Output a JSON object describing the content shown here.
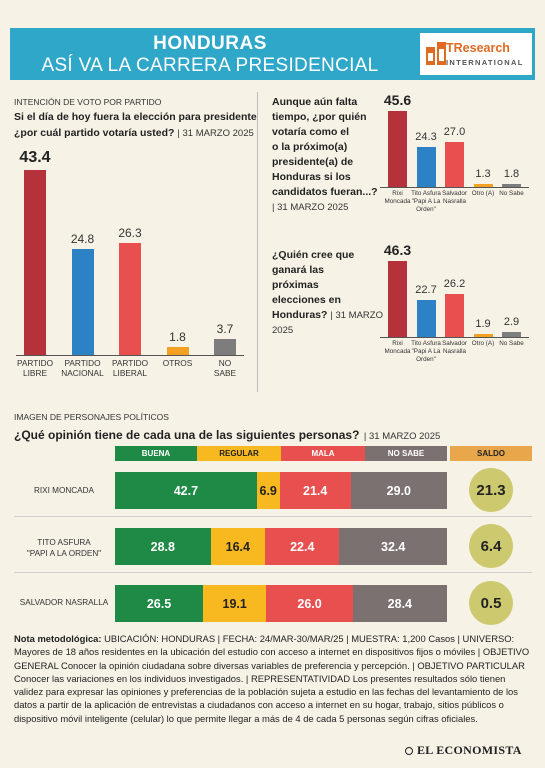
{
  "header": {
    "title": "HONDURAS",
    "subtitle": "ASÍ VA LA CARRERA PRESIDENCIAL",
    "logo_main": "TResearch",
    "logo_sub": "INTERNATIONAL",
    "bg_color": "#2fa7c9",
    "logo_color": "#e06a22"
  },
  "left_section": {
    "kicker": "INTENCIÓN DE VOTO POR PARTIDO",
    "question_line1": "Si el día de hoy fuera la elección para presidente",
    "question_line2": "¿por cuál partido votaría usted?",
    "date": "| 31 MARZO 2025"
  },
  "right_q1": {
    "line1": "Aunque aún falta",
    "line2": "tiempo, ¿por quién",
    "line3": "votaría como el",
    "line4": "o la próximo(a)",
    "line5": "presidente(a) de",
    "line6": "Honduras si los",
    "line7": "candidatos fueran...?",
    "date": "| 31 MARZO 2025"
  },
  "right_q2": {
    "line1": "¿Quién cree que",
    "line2": "ganará las próximas",
    "line3": "elecciones en",
    "line4": "Honduras?",
    "date_part1": "| 31 MARZO",
    "date_part2": "2025"
  },
  "image_section": {
    "kicker": "IMAGEN DE PERSONAJES POLÍTICOS",
    "question": "¿Qué opinión tiene de cada una de las siguientes personas?",
    "date": "| 31 MARZO 2025",
    "headers": [
      "BUENA",
      "REGULAR",
      "MALA",
      "NO SABE",
      "SALDO"
    ],
    "rows": [
      {
        "label1": "RIXI MONCADA",
        "label2": ""
      },
      {
        "label1": "TITO ASFURA",
        "label2": "\"PAPI A LA ORDEN\""
      },
      {
        "label1": "SALVADOR NASRALLA",
        "label2": ""
      }
    ]
  },
  "colors": {
    "red": "#b5323a",
    "blue": "#2c82c4",
    "light_red": "#e8504f",
    "orange": "#f2a122",
    "gray": "#7d7d7d",
    "green": "#1f8a45",
    "yellow": "#f8b820",
    "mala": "#e8504f",
    "nosabe": "#7b7170",
    "saldo_header": "#e9a74c",
    "saldo_circle": "#ccc96e"
  },
  "chart_data": [
    {
      "type": "bar",
      "title": "Si el día de hoy fuera la elección para presidente ¿por cuál partido votaría usted?",
      "categories": [
        "PARTIDO LIBRE",
        "PARTIDO NACIONAL",
        "PARTIDO LIBERAL",
        "OTROS",
        "NO SABE"
      ],
      "values": [
        43.4,
        24.8,
        26.3,
        1.8,
        3.7
      ],
      "value_labels": [
        "43.4",
        "24.8",
        "26.3",
        "1.8",
        "3.7"
      ],
      "colors": [
        "#b5323a",
        "#2c82c4",
        "#e8504f",
        "#f2a122",
        "#7d7d7d"
      ],
      "cat_lines": [
        [
          "PARTIDO",
          "LIBRE"
        ],
        [
          "PARTIDO",
          "NACIONAL"
        ],
        [
          "PARTIDO",
          "LIBERAL"
        ],
        [
          "OTROS",
          ""
        ],
        [
          "NO",
          "SABE"
        ]
      ]
    },
    {
      "type": "bar",
      "title": "Aunque aún falta tiempo, ¿por quién votaría como el o la próximo(a) presidente(a) de Honduras si los candidatos fueran...?",
      "categories": [
        "Rixi Moncada",
        "Tito Asfura \"Papi A La Orden\"",
        "Salvador Nasralla",
        "Otro (A)",
        "No Sabe"
      ],
      "values": [
        45.6,
        24.3,
        27.0,
        1.3,
        1.8
      ],
      "value_labels": [
        "45.6",
        "24.3",
        "27.0",
        "1.3",
        "1.8"
      ],
      "colors": [
        "#b5323a",
        "#2c82c4",
        "#e8504f",
        "#f2a122",
        "#7d7d7d"
      ],
      "cat_lines": [
        [
          "Rixi",
          "Moncada",
          ""
        ],
        [
          "Tito Asfura",
          "\"Papi A La",
          "Orden\""
        ],
        [
          "Salvador",
          "Nasralla",
          ""
        ],
        [
          "Otro (A)",
          "",
          ""
        ],
        [
          "No Sabe",
          "",
          ""
        ]
      ]
    },
    {
      "type": "bar",
      "title": "¿Quién cree que ganará las próximas elecciones en Honduras?",
      "categories": [
        "Rixi Moncada",
        "Tito Asfura \"Papi A La Orden\"",
        "Salvador Nasralla",
        "Otro (A)",
        "No Sabe"
      ],
      "values": [
        46.3,
        22.7,
        26.2,
        1.9,
        2.9
      ],
      "value_labels": [
        "46.3",
        "22.7",
        "26.2",
        "1.9",
        "2.9"
      ],
      "colors": [
        "#b5323a",
        "#2c82c4",
        "#e8504f",
        "#f2a122",
        "#7d7d7d"
      ],
      "cat_lines": [
        [
          "Rixi",
          "Moncada",
          ""
        ],
        [
          "Tito Asfura",
          "\"Papi A La",
          "Orden\""
        ],
        [
          "Salvador",
          "Nasralla",
          ""
        ],
        [
          "Otro (A)",
          "",
          ""
        ],
        [
          "No Sabe",
          "",
          ""
        ]
      ]
    },
    {
      "type": "bar",
      "title": "¿Qué opinión tiene de cada una de las siguientes personas?",
      "stacked": true,
      "categories": [
        "RIXI MONCADA",
        "TITO ASFURA \"PAPI A LA ORDEN\"",
        "SALVADOR NASRALLA"
      ],
      "series": [
        {
          "name": "BUENA",
          "values": [
            42.7,
            28.8,
            26.5
          ],
          "labels": [
            "42.7",
            "28.8",
            "26.5"
          ]
        },
        {
          "name": "REGULAR",
          "values": [
            6.9,
            16.4,
            19.1
          ],
          "labels": [
            "6.9",
            "16.4",
            "19.1"
          ]
        },
        {
          "name": "MALA",
          "values": [
            21.4,
            22.4,
            26.0
          ],
          "labels": [
            "21.4",
            "22.4",
            "26.0"
          ]
        },
        {
          "name": "NO SABE",
          "values": [
            29.0,
            32.4,
            28.4
          ],
          "labels": [
            "29.0",
            "32.4",
            "28.4"
          ]
        }
      ],
      "saldo": {
        "name": "SALDO",
        "values": [
          21.3,
          6.4,
          0.5
        ],
        "labels": [
          "21.3",
          "6.4",
          "0.5"
        ]
      }
    }
  ],
  "nota": {
    "label": "Nota metodológica:",
    "text": " UBICACIÓN: HONDURAS | FECHA: 24/MAR-30/MAR/25 | MUESTRA: 1,200 Casos | UNIVERSO: Mayores de 18 años residentes en la ubicación del estudio con acceso a internet en dispositivos fijos o móviles | OBJETIVO GENERAL Conocer la opinión ciudadana sobre diversas variables de preferencia y percepción. | OBJETIVO PARTICULAR Conocer las variaciones en los individuos investigados. | REPRESENTATIVIDAD Los presentes resultados sólo tienen validez para expresar las opiniones y preferencias de la población sujeta a estudio en las fechas del levantamiento de los datos a partir de la aplicación de entrevistas a ciudadanos con acceso a internet en su hogar, trabajo, sitios públicos o dispositivo móvil inteligente (celular) lo que permite llegar a más de 4 de cada 5 personas según cifras oficiales."
  },
  "footer": {
    "brand": "EL ECONOMISTA"
  }
}
